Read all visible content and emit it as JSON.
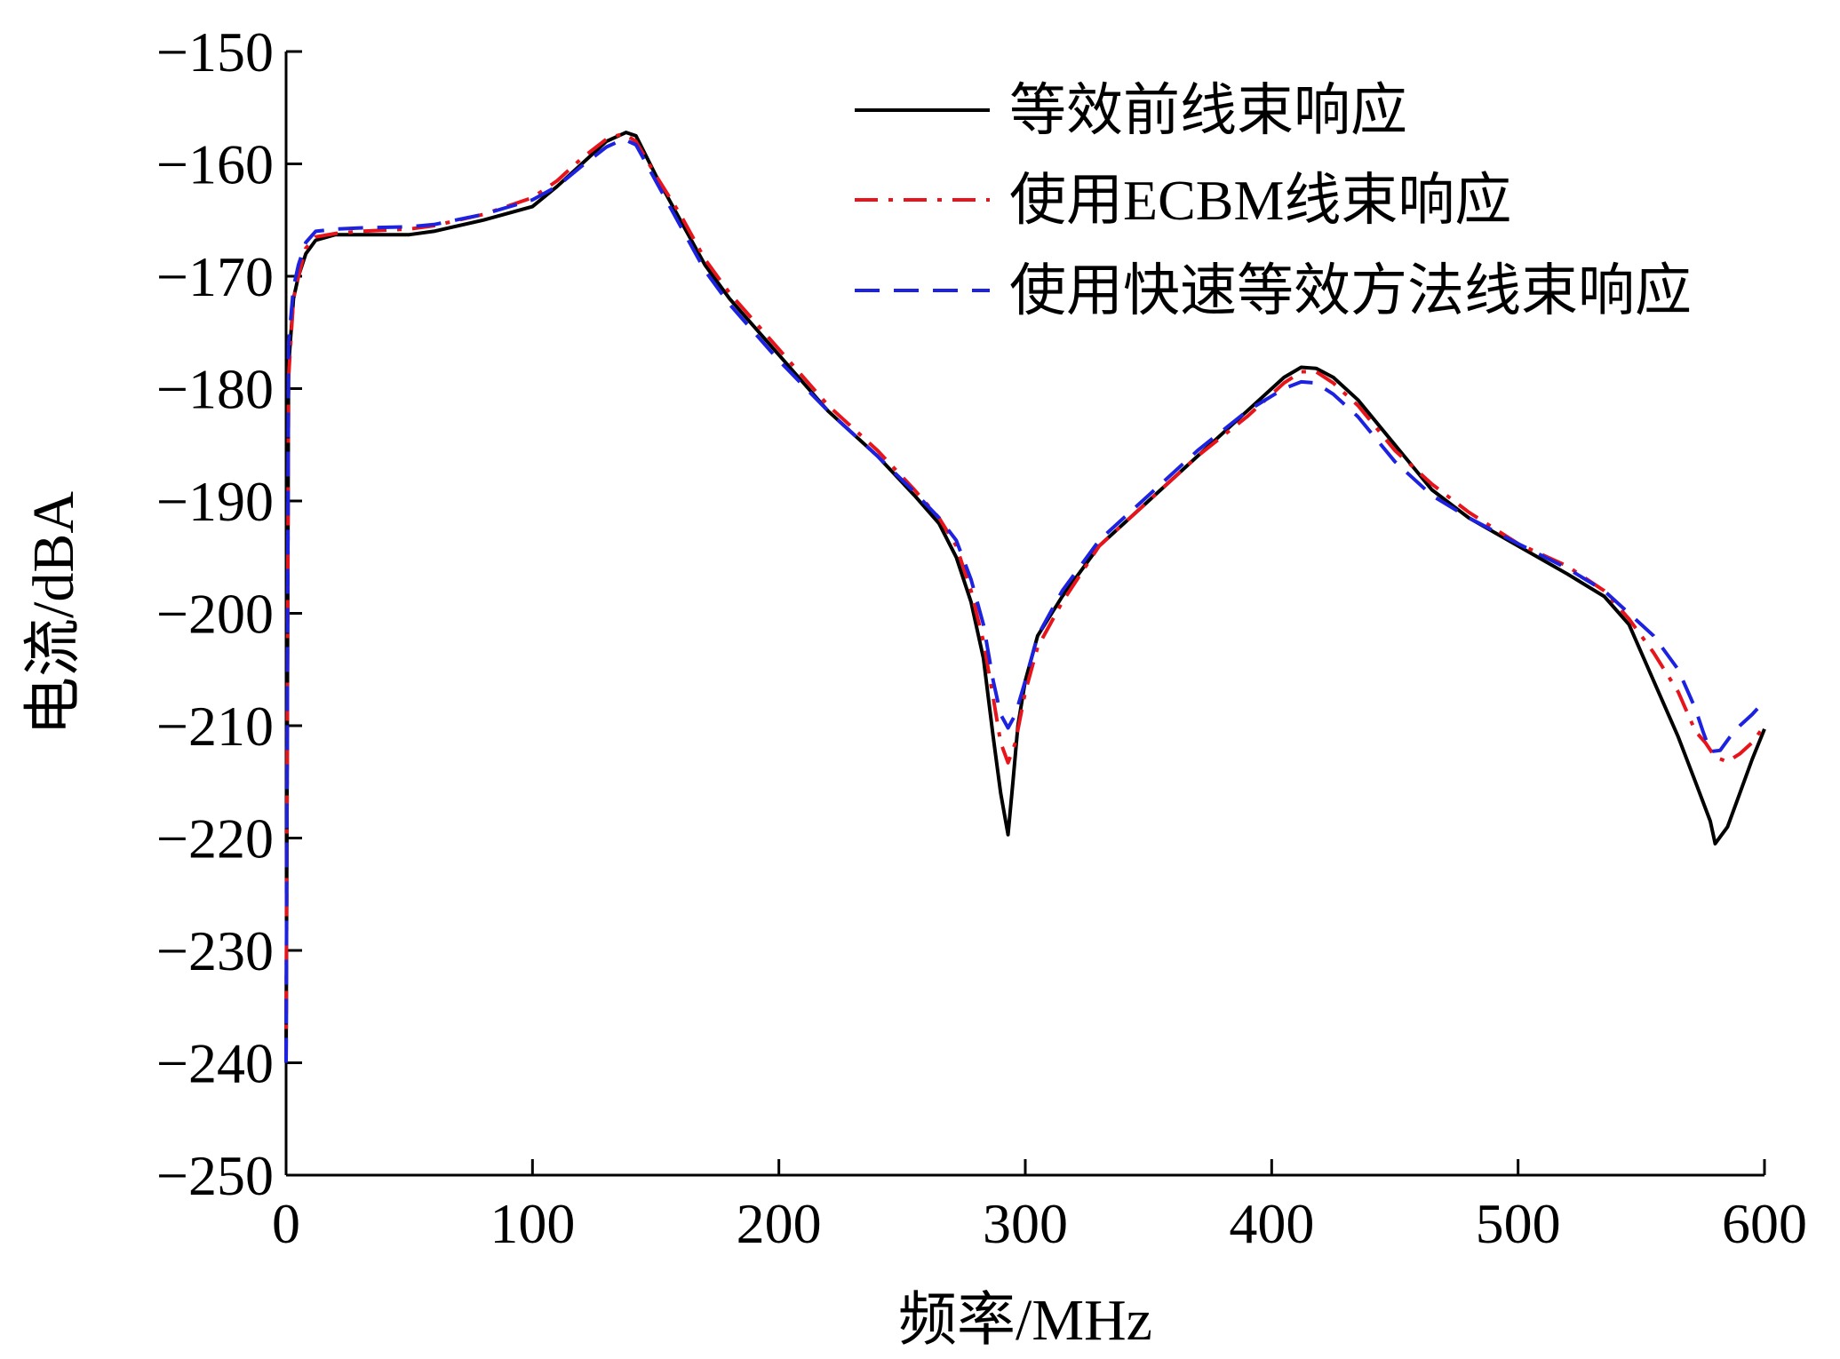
{
  "chart_data": {
    "type": "line",
    "title": "",
    "xlabel": "频率/MHz",
    "ylabel": "电流/dBA",
    "xlim": [
      0,
      600
    ],
    "ylim": [
      -250,
      -150
    ],
    "xticks": [
      0,
      100,
      200,
      300,
      400,
      500,
      600
    ],
    "yticks": [
      -150,
      -160,
      -170,
      -180,
      -190,
      -200,
      -210,
      -220,
      -230,
      -240,
      -250
    ],
    "xtick_labels": [
      "0",
      "100",
      "200",
      "300",
      "400",
      "500",
      "600"
    ],
    "ytick_labels": [
      "−150",
      "−160",
      "−170",
      "−180",
      "−190",
      "−200",
      "−210",
      "−220",
      "−230",
      "−240",
      "−250"
    ],
    "grid": false,
    "legend_position": "top-right",
    "series": [
      {
        "name": "等效前线束响应",
        "color": "#000000",
        "style": "solid",
        "x": [
          0,
          1,
          3,
          5,
          8,
          12,
          20,
          30,
          50,
          60,
          80,
          100,
          110,
          120,
          130,
          138,
          142,
          150,
          160,
          170,
          180,
          200,
          220,
          240,
          255,
          265,
          272,
          278,
          283,
          287,
          290,
          293,
          295,
          297,
          300,
          305,
          315,
          330,
          350,
          370,
          390,
          405,
          412,
          418,
          425,
          435,
          450,
          465,
          480,
          500,
          520,
          535,
          545,
          555,
          565,
          572,
          578,
          580,
          585,
          590,
          595,
          600
        ],
        "y": [
          -240,
          -178,
          -172,
          -170,
          -168,
          -166.8,
          -166.3,
          -166.3,
          -166.3,
          -166,
          -165,
          -163.8,
          -162,
          -160,
          -158,
          -157.2,
          -157.5,
          -161,
          -165,
          -169,
          -172,
          -177,
          -182,
          -186,
          -189.5,
          -192,
          -195,
          -199,
          -204,
          -211,
          -216,
          -219.7,
          -215,
          -210,
          -206,
          -202,
          -198.5,
          -194,
          -190,
          -186,
          -182,
          -179,
          -178.1,
          -178.2,
          -179,
          -181,
          -185,
          -189,
          -191.5,
          -194,
          -196.5,
          -198.5,
          -201,
          -206,
          -211,
          -215,
          -218.5,
          -220.5,
          -219,
          -216,
          -213,
          -210.3
        ]
      },
      {
        "name": "使用ECBM线束响应",
        "color": "#e8141b",
        "style": "dashdot",
        "x": [
          0,
          1,
          3,
          5,
          8,
          12,
          20,
          30,
          50,
          60,
          80,
          100,
          110,
          120,
          130,
          137,
          142,
          150,
          160,
          170,
          180,
          200,
          220,
          240,
          255,
          265,
          272,
          278,
          283,
          287,
          290,
          293,
          296,
          300,
          305,
          315,
          330,
          350,
          370,
          390,
          405,
          412,
          418,
          425,
          435,
          450,
          465,
          480,
          500,
          520,
          535,
          545,
          555,
          565,
          572,
          576,
          580,
          585,
          590,
          595,
          600
        ],
        "y": [
          -240,
          -179,
          -172,
          -170,
          -167.5,
          -166.5,
          -166.2,
          -166,
          -165.8,
          -165.5,
          -164.5,
          -163,
          -161.5,
          -159.5,
          -157.8,
          -157.3,
          -158,
          -161,
          -164.5,
          -168.5,
          -171.5,
          -176.5,
          -181.5,
          -185.5,
          -189,
          -191.5,
          -194,
          -198,
          -202.5,
          -207.5,
          -211.5,
          -213.3,
          -211.5,
          -207,
          -203,
          -199,
          -194,
          -190,
          -186,
          -182.5,
          -179.5,
          -178.5,
          -178.5,
          -179.5,
          -181.5,
          -185.5,
          -188.5,
          -191,
          -193.8,
          -195.8,
          -198,
          -200.5,
          -203.5,
          -207,
          -210.5,
          -211.5,
          -212.8,
          -213.2,
          -212.5,
          -211.5,
          -210
        ]
      },
      {
        "name": "使用快速等效方法线束响应",
        "color": "#1d22e0",
        "style": "dashed",
        "x": [
          0,
          1,
          3,
          5,
          8,
          12,
          20,
          30,
          50,
          60,
          80,
          100,
          110,
          120,
          130,
          137,
          142,
          150,
          160,
          170,
          180,
          200,
          220,
          240,
          255,
          265,
          272,
          278,
          283,
          287,
          290,
          293,
          296,
          300,
          305,
          315,
          330,
          350,
          370,
          390,
          405,
          412,
          418,
          425,
          435,
          450,
          465,
          480,
          500,
          520,
          535,
          545,
          555,
          565,
          572,
          575,
          578,
          582,
          586,
          590,
          595,
          600
        ],
        "y": [
          -240,
          -176,
          -171,
          -169,
          -167,
          -166,
          -165.8,
          -165.7,
          -165.6,
          -165.4,
          -164.5,
          -163.2,
          -162,
          -160.2,
          -158.5,
          -157.8,
          -158.3,
          -161.5,
          -165.5,
          -169.5,
          -172.5,
          -177.5,
          -182,
          -186,
          -189.2,
          -191.5,
          -193.5,
          -197,
          -201,
          -206,
          -209,
          -210.2,
          -209,
          -206,
          -202,
          -198,
          -193.5,
          -189.5,
          -185.5,
          -182,
          -180,
          -179.4,
          -179.5,
          -180.5,
          -182.5,
          -186.5,
          -189.5,
          -191.5,
          -193.8,
          -196,
          -198,
          -200,
          -202,
          -205,
          -208.5,
          -210.5,
          -212.3,
          -212.2,
          -211,
          -210,
          -209,
          -207.8
        ]
      }
    ]
  }
}
